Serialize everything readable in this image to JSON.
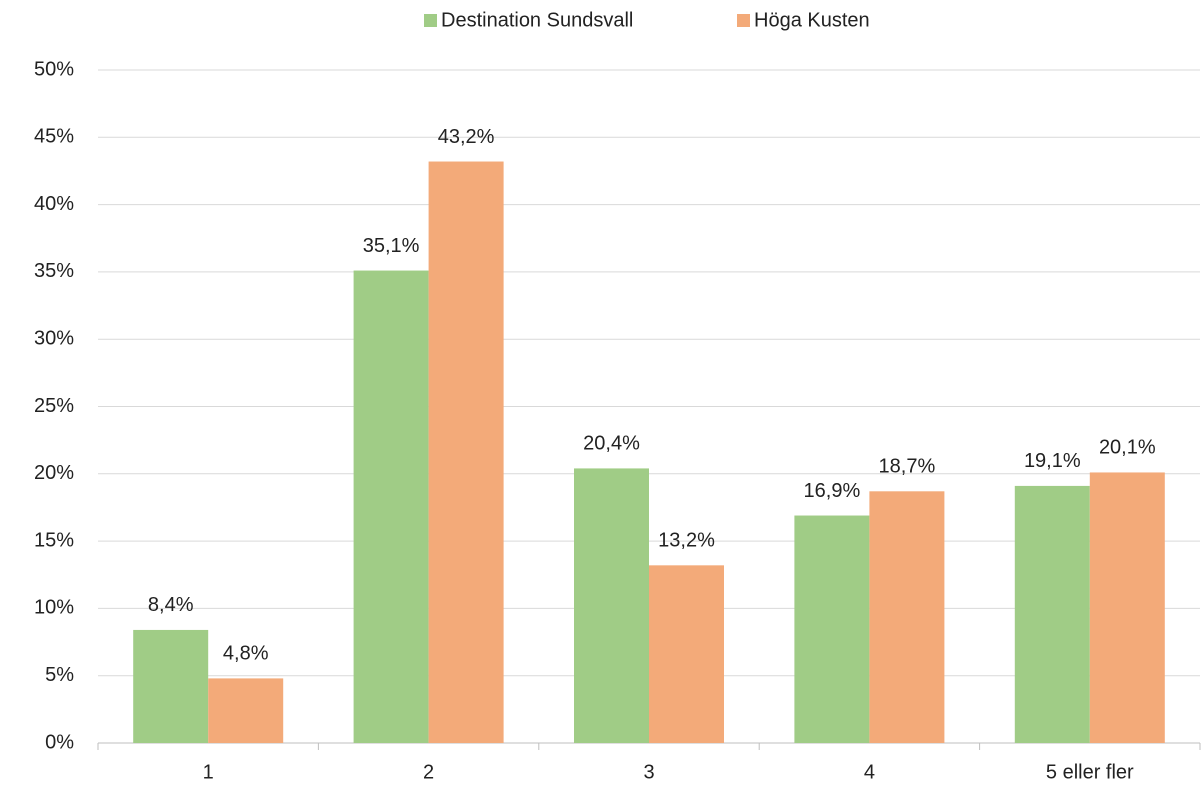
{
  "chart_data": {
    "type": "bar",
    "categories": [
      "1",
      "2",
      "3",
      "4",
      "5 eller fler"
    ],
    "series": [
      {
        "name": "Destination Sundsvall",
        "color": "#a0cc86",
        "values": [
          8.4,
          35.1,
          20.4,
          16.9,
          19.1
        ],
        "value_labels": [
          "8,4%",
          "35,1%",
          "20,4%",
          "16,9%",
          "19,1%"
        ]
      },
      {
        "name": "Höga Kusten",
        "color": "#f3aa79",
        "values": [
          4.8,
          43.2,
          13.2,
          18.7,
          20.1
        ],
        "value_labels": [
          "4,8%",
          "43,2%",
          "13,2%",
          "18,7%",
          "20,1%"
        ]
      }
    ],
    "ylim": [
      0,
      50
    ],
    "yticks": [
      {
        "value": 0,
        "label": "0%"
      },
      {
        "value": 5,
        "label": "5%"
      },
      {
        "value": 10,
        "label": "10%"
      },
      {
        "value": 15,
        "label": "15%"
      },
      {
        "value": 20,
        "label": "20%"
      },
      {
        "value": 25,
        "label": "25%"
      },
      {
        "value": 30,
        "label": "30%"
      },
      {
        "value": 35,
        "label": "35%"
      },
      {
        "value": 40,
        "label": "40%"
      },
      {
        "value": 45,
        "label": "45%"
      },
      {
        "value": 50,
        "label": "50%"
      }
    ],
    "grid": true,
    "legend": "top"
  }
}
